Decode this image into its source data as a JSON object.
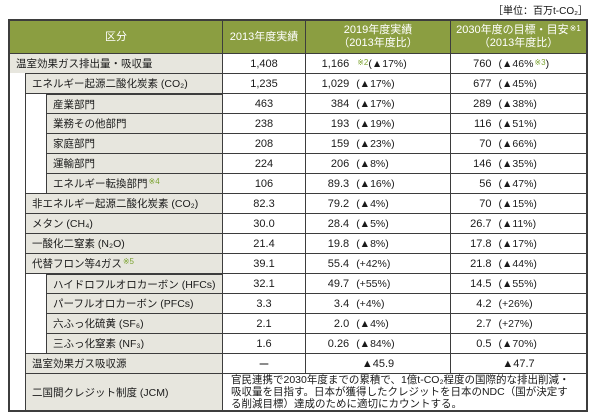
{
  "unit_label": "［単位：百万t-CO₂］",
  "colors": {
    "header_bg": "#8b9e41",
    "label_cell_bg": "#e7e6de",
    "border": "#3d3d3d",
    "footnote_green": "#7ba32f"
  },
  "header": {
    "col_category": "区分",
    "col_2013": "2013年度実績",
    "col_2019_line1": "2019年度実績",
    "col_2019_line2": "（2013年度比）",
    "col_2030_line1": "2030年度の目標・目安",
    "col_2030_note": "※1",
    "col_2030_line2": "（2013年度比）"
  },
  "rows": [
    {
      "indent": 0,
      "label": "温室効果ガス排出量・吸収量",
      "note": "",
      "v2013": "1,408",
      "v2019": {
        "num": "1,166",
        "pct": [
          [
            "※2",
            "n"
          ],
          [
            "(▲17%)",
            "p"
          ]
        ]
      },
      "v2030": {
        "num": "760",
        "pct": [
          [
            "(▲46%",
            "p"
          ],
          [
            "※3",
            "n"
          ],
          [
            ")",
            "p"
          ]
        ]
      }
    },
    {
      "indent": 1,
      "label": "エネルギー起源二酸化炭素 (CO₂)",
      "note": "",
      "v2013": "1,235",
      "v2019": {
        "num": "1,029",
        "pct": [
          [
            "(▲17%)",
            "p"
          ]
        ]
      },
      "v2030": {
        "num": "677",
        "pct": [
          [
            "(▲45%)",
            "p"
          ]
        ]
      }
    },
    {
      "indent": 2,
      "label": "産業部門",
      "note": "",
      "v2013": "463",
      "v2019": {
        "num": "384",
        "pct": [
          [
            "(▲17%)",
            "p"
          ]
        ]
      },
      "v2030": {
        "num": "289",
        "pct": [
          [
            "(▲38%)",
            "p"
          ]
        ]
      }
    },
    {
      "indent": 2,
      "label": "業務その他部門",
      "note": "",
      "v2013": "238",
      "v2019": {
        "num": "193",
        "pct": [
          [
            "(▲19%)",
            "p"
          ]
        ]
      },
      "v2030": {
        "num": "116",
        "pct": [
          [
            "(▲51%)",
            "p"
          ]
        ]
      }
    },
    {
      "indent": 2,
      "label": "家庭部門",
      "note": "",
      "v2013": "208",
      "v2019": {
        "num": "159",
        "pct": [
          [
            "(▲23%)",
            "p"
          ]
        ]
      },
      "v2030": {
        "num": "70",
        "pct": [
          [
            "(▲66%)",
            "p"
          ]
        ]
      }
    },
    {
      "indent": 2,
      "label": "運輸部門",
      "note": "",
      "v2013": "224",
      "v2019": {
        "num": "206",
        "pct": [
          [
            "(▲8%)",
            "p"
          ]
        ]
      },
      "v2030": {
        "num": "146",
        "pct": [
          [
            "(▲35%)",
            "p"
          ]
        ]
      }
    },
    {
      "indent": 2,
      "label": "エネルギー転換部門",
      "note": "※4",
      "v2013": "106",
      "v2019": {
        "num": "89.3",
        "pct": [
          [
            "(▲16%)",
            "p"
          ]
        ]
      },
      "v2030": {
        "num": "56",
        "pct": [
          [
            "(▲47%)",
            "p"
          ]
        ]
      }
    },
    {
      "indent": 1,
      "label": "非エネルギー起源二酸化炭素 (CO₂)",
      "note": "",
      "v2013": "82.3",
      "v2019": {
        "num": "79.2",
        "pct": [
          [
            "(▲4%)",
            "p"
          ]
        ]
      },
      "v2030": {
        "num": "70",
        "pct": [
          [
            "(▲15%)",
            "p"
          ]
        ]
      }
    },
    {
      "indent": 1,
      "label": "メタン (CH₄)",
      "note": "",
      "v2013": "30.0",
      "v2019": {
        "num": "28.4",
        "pct": [
          [
            "(▲5%)",
            "p"
          ]
        ]
      },
      "v2030": {
        "num": "26.7",
        "pct": [
          [
            "(▲11%)",
            "p"
          ]
        ]
      }
    },
    {
      "indent": 1,
      "label": "一酸化二窒素 (N₂O)",
      "note": "",
      "v2013": "21.4",
      "v2019": {
        "num": "19.8",
        "pct": [
          [
            "(▲8%)",
            "p"
          ]
        ]
      },
      "v2030": {
        "num": "17.8",
        "pct": [
          [
            "(▲17%)",
            "p"
          ]
        ]
      }
    },
    {
      "indent": 1,
      "label": "代替フロン等4ガス",
      "note": "※5",
      "v2013": "39.1",
      "v2019": {
        "num": "55.4",
        "pct": [
          [
            "(+42%)",
            "p"
          ]
        ]
      },
      "v2030": {
        "num": "21.8",
        "pct": [
          [
            "(▲44%)",
            "p"
          ]
        ]
      }
    },
    {
      "indent": 2,
      "label": "ハイドロフルオロカーボン (HFCs)",
      "note": "",
      "v2013": "32.1",
      "v2019": {
        "num": "49.7",
        "pct": [
          [
            "(+55%)",
            "p"
          ]
        ]
      },
      "v2030": {
        "num": "14.5",
        "pct": [
          [
            "(▲55%)",
            "p"
          ]
        ]
      }
    },
    {
      "indent": 2,
      "label": "パーフルオロカーボン (PFCs)",
      "note": "",
      "v2013": "3.3",
      "v2019": {
        "num": "3.4",
        "pct": [
          [
            "(+4%)",
            "p"
          ]
        ]
      },
      "v2030": {
        "num": "4.2",
        "pct": [
          [
            "(+26%)",
            "p"
          ]
        ]
      }
    },
    {
      "indent": 2,
      "label": "六ふっ化硫黄 (SF₆)",
      "note": "",
      "v2013": "2.1",
      "v2019": {
        "num": "2.0",
        "pct": [
          [
            "(▲4%)",
            "p"
          ]
        ]
      },
      "v2030": {
        "num": "2.7",
        "pct": [
          [
            "(+27%)",
            "p"
          ]
        ]
      }
    },
    {
      "indent": 2,
      "label": "三ふっ化窒素 (NF₃)",
      "note": "",
      "v2013": "1.6",
      "v2019": {
        "num": "0.26",
        "pct": [
          [
            "(▲84%)",
            "p"
          ]
        ]
      },
      "v2030": {
        "num": "0.5",
        "pct": [
          [
            "(▲70%)",
            "p"
          ]
        ]
      }
    },
    {
      "indent": 1,
      "label": "温室効果ガス吸収源",
      "note": "",
      "v2013": "ー",
      "v2019": {
        "center": "▲45.9"
      },
      "v2030": {
        "center": "▲47.7"
      }
    },
    {
      "indent": 1,
      "label": "二国間クレジット制度 (JCM)",
      "note": "",
      "span": "官民連携で2030年度までの累積で、1億t-CO₂程度の国際的な排出削減・吸収量を目指す。日本が獲得したクレジットを日本のNDC（国が決定する削減目標）達成のために適切にカウントする。"
    }
  ]
}
